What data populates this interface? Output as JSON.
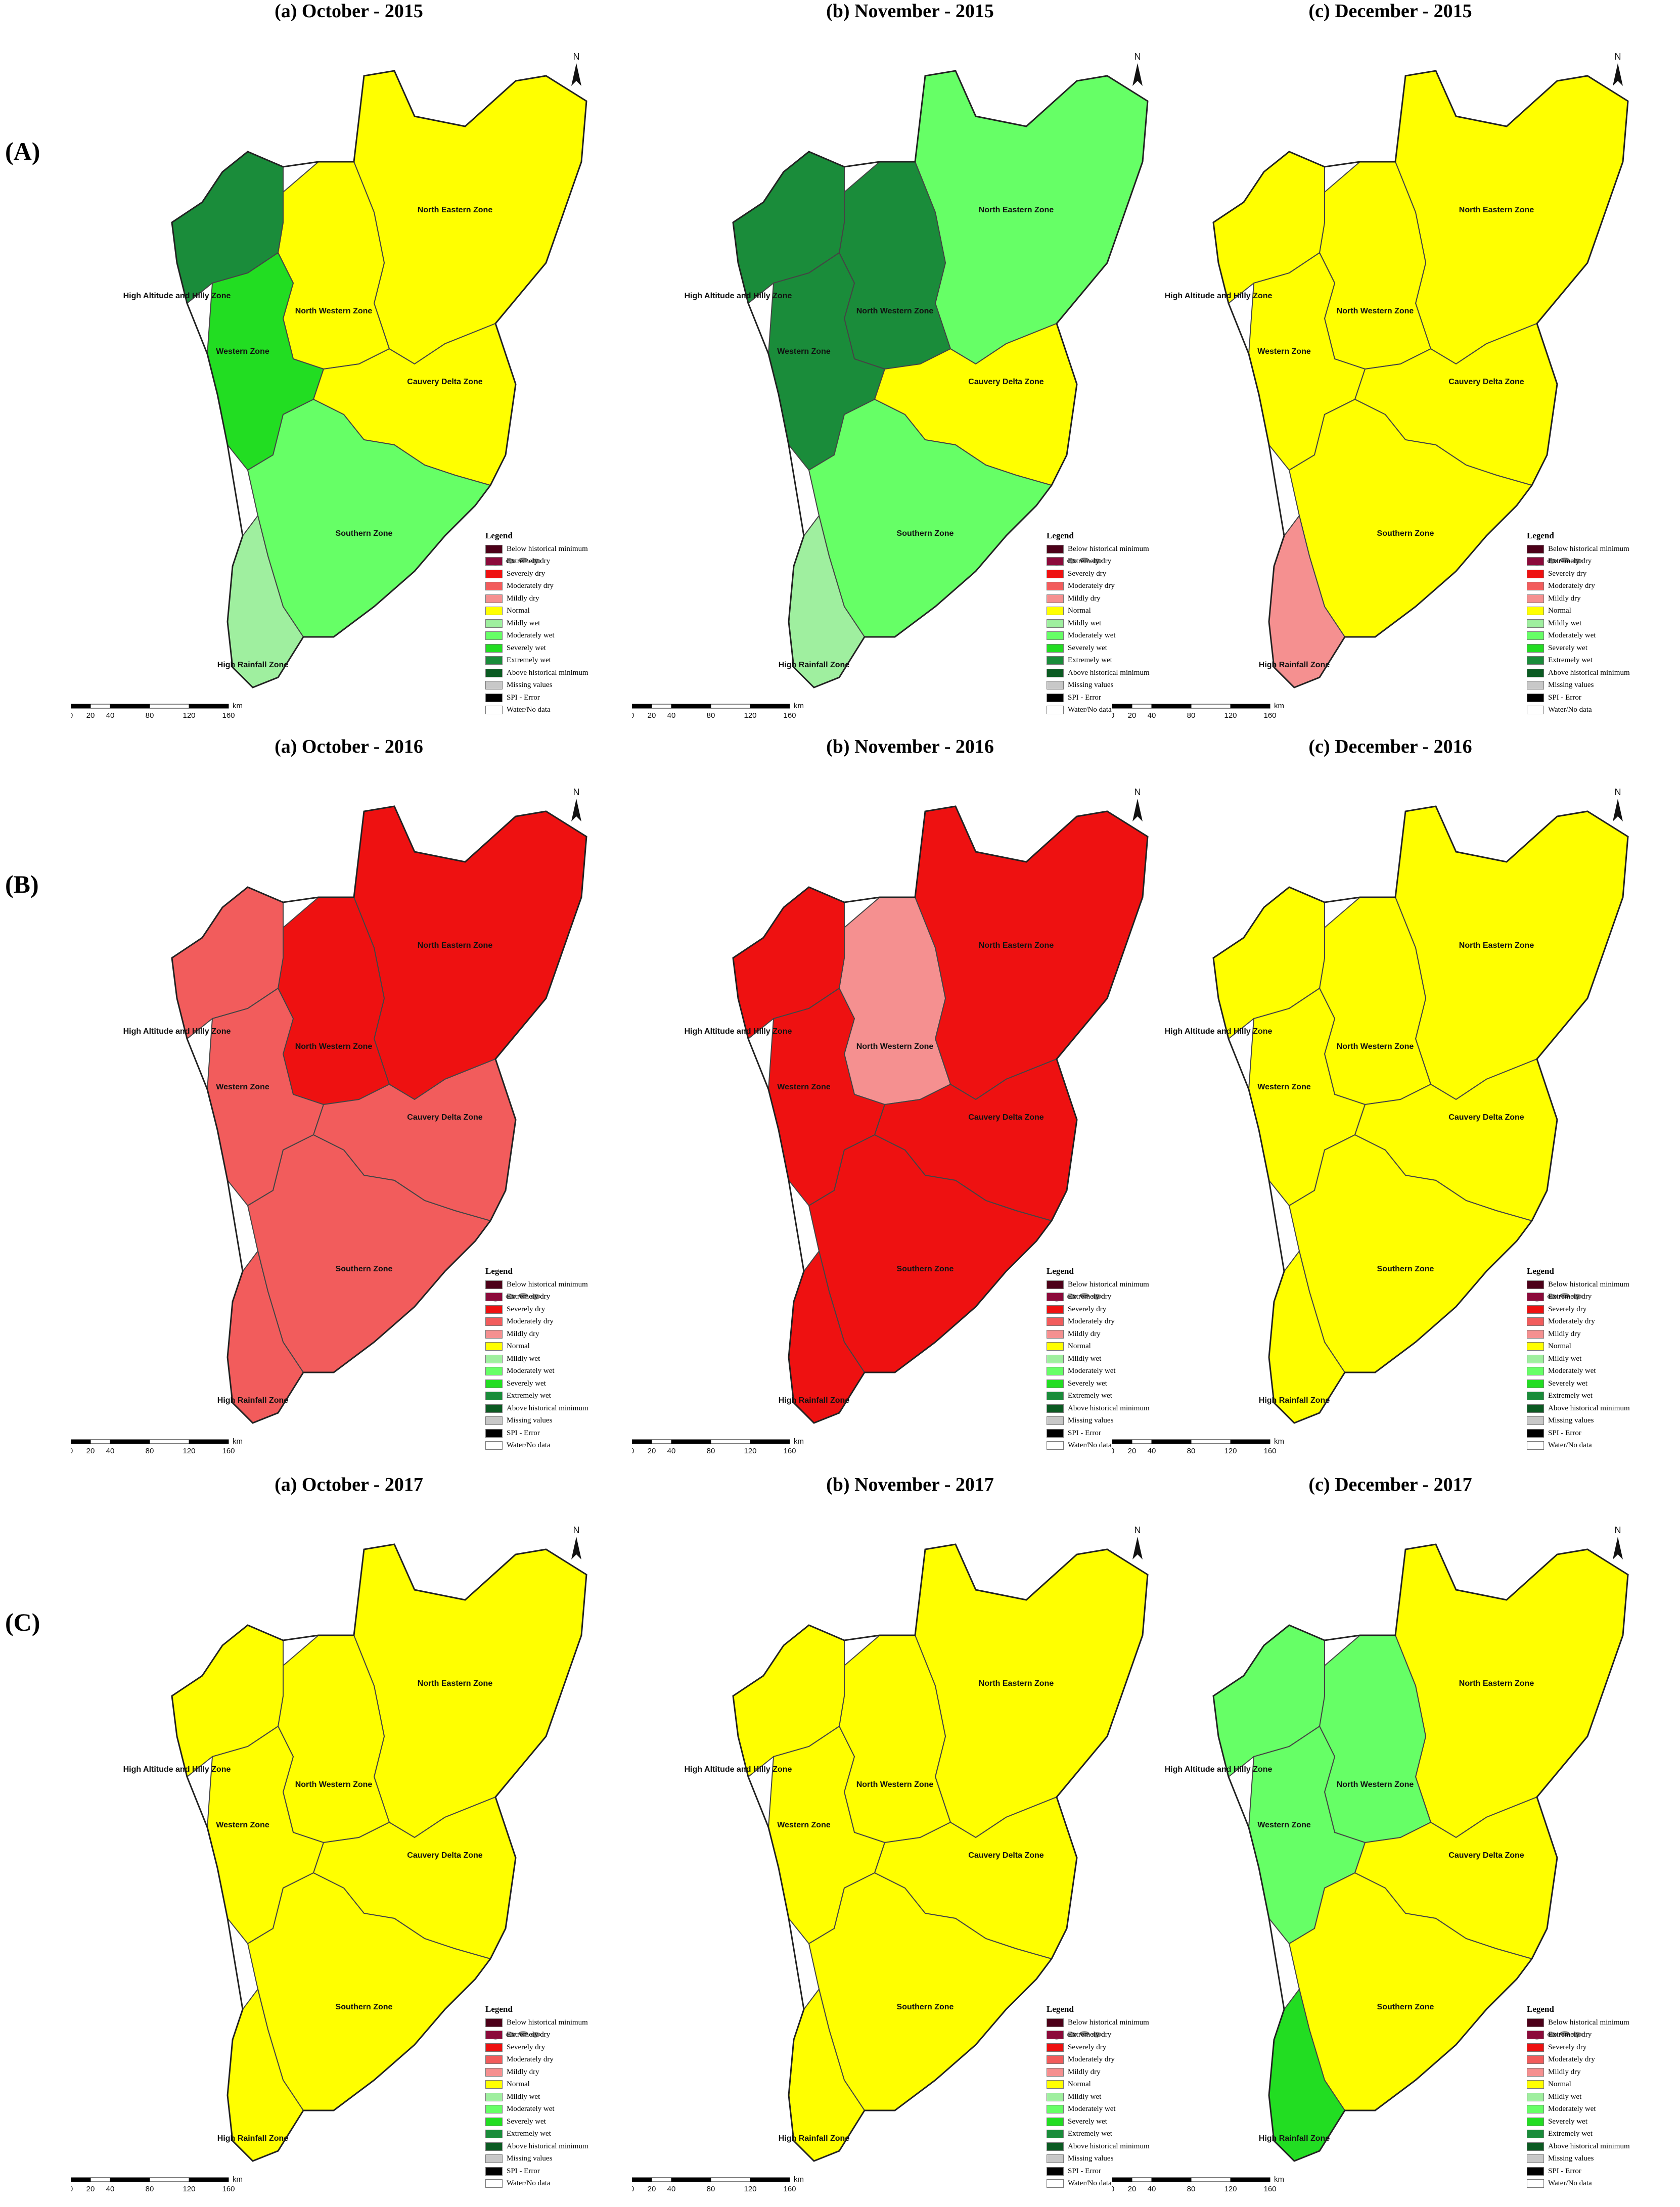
{
  "rows": [
    {
      "label": "(A)",
      "panels": [
        {
          "title": "(a) October - 2015",
          "zones": {
            "north_eastern": "Normal",
            "north_western": "Normal",
            "western": "Severely wet",
            "high_altitude": "Extremely wet",
            "cauvery_delta": "Normal",
            "southern": "Moderately wet",
            "high_rainfall": "Mildly wet"
          }
        },
        {
          "title": "(b) November - 2015",
          "zones": {
            "north_eastern": "Moderately wet",
            "north_western": "Extremely wet",
            "western": "Extremely wet",
            "high_altitude": "Extremely wet",
            "cauvery_delta": "Normal",
            "southern": "Moderately wet",
            "high_rainfall": "Mildly wet"
          }
        },
        {
          "title": "(c) December - 2015",
          "zones": {
            "north_eastern": "Normal",
            "north_western": "Normal",
            "western": "Normal",
            "high_altitude": "Normal",
            "cauvery_delta": "Normal",
            "southern": "Normal",
            "high_rainfall": "Mildly dry"
          }
        }
      ]
    },
    {
      "label": "(B)",
      "panels": [
        {
          "title": "(a) October - 2016",
          "zones": {
            "north_eastern": "Severely dry",
            "north_western": "Severely dry",
            "western": "Moderately dry",
            "high_altitude": "Moderately dry",
            "cauvery_delta": "Moderately dry",
            "southern": "Moderately dry",
            "high_rainfall": "Moderately dry"
          }
        },
        {
          "title": "(b) November - 2016",
          "zones": {
            "north_eastern": "Severely dry",
            "north_western": "Mildly dry",
            "western": "Severely dry",
            "high_altitude": "Severely dry",
            "cauvery_delta": "Severely dry",
            "southern": "Severely dry",
            "high_rainfall": "Severely dry"
          }
        },
        {
          "title": "(c) December - 2016",
          "zones": {
            "north_eastern": "Normal",
            "north_western": "Normal",
            "western": "Normal",
            "high_altitude": "Normal",
            "cauvery_delta": "Normal",
            "southern": "Normal",
            "high_rainfall": "Normal"
          }
        }
      ]
    },
    {
      "label": "(C)",
      "panels": [
        {
          "title": "(a) October - 2017",
          "zones": {
            "north_eastern": "Normal",
            "north_western": "Normal",
            "western": "Normal",
            "high_altitude": "Normal",
            "cauvery_delta": "Normal",
            "southern": "Normal",
            "high_rainfall": "Normal"
          }
        },
        {
          "title": "(b) November - 2017",
          "zones": {
            "north_eastern": "Normal",
            "north_western": "Normal",
            "western": "Normal",
            "high_altitude": "Normal",
            "cauvery_delta": "Normal",
            "southern": "Normal",
            "high_rainfall": "Normal"
          }
        },
        {
          "title": "(c) December - 2017",
          "zones": {
            "north_eastern": "Normal",
            "north_western": "Moderately wet",
            "western": "Moderately wet",
            "high_altitude": "Moderately wet",
            "cauvery_delta": "Normal",
            "southern": "Normal",
            "high_rainfall": "Severely wet"
          }
        }
      ]
    }
  ],
  "zone_labels": {
    "north_eastern": "North Eastern Zone",
    "north_western": "North Western Zone",
    "western": "Western Zone",
    "high_altitude": "High Altitude and Hilly Zone",
    "cauvery_delta": "Cauvery Delta Zone",
    "southern": "Southern Zone",
    "high_rainfall": "High Rainfall Zone"
  },
  "legend": {
    "title": "Legend",
    "items": [
      {
        "label": "Below historical minimum",
        "color": "#4d0019"
      },
      {
        "label": "Extremely dry",
        "color": "#8b0a3a"
      },
      {
        "label": "Severely dry",
        "color": "#ee1111"
      },
      {
        "label": "Moderately dry",
        "color": "#f25c5c"
      },
      {
        "label": "Mildly dry",
        "color": "#f59090"
      },
      {
        "label": "Normal",
        "color": "#ffff00"
      },
      {
        "label": "Mildly wet",
        "color": "#9fef9f"
      },
      {
        "label": "Moderately wet",
        "color": "#66ff66"
      },
      {
        "label": "Severely wet",
        "color": "#22dd22"
      },
      {
        "label": "Extremely wet",
        "color": "#1a8c3a"
      },
      {
        "label": "Above historical minimum",
        "color": "#0b5a22"
      },
      {
        "label": "Missing values",
        "color": "#c8c8c8"
      },
      {
        "label": "SPI - Error",
        "color": "#000000"
      },
      {
        "label": "Water/No data",
        "color": "#ffffff"
      }
    ]
  },
  "scale": {
    "ticks": [
      "0",
      "20",
      "40",
      "80",
      "120",
      "160"
    ],
    "unit": "km"
  },
  "north_label": "N"
}
